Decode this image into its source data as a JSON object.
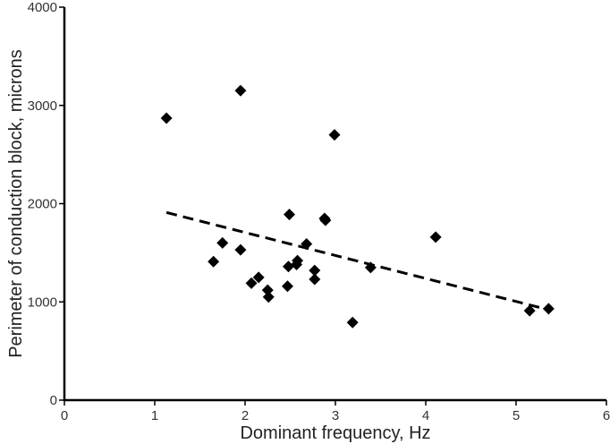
{
  "chart_data": {
    "type": "scatter",
    "xlabel": "Dominant frequency, Hz",
    "ylabel": "Perimeter of conduction block, microns",
    "xlim": [
      0,
      6
    ],
    "ylim": [
      0,
      4000
    ],
    "xticks": [
      "0",
      "1",
      "2",
      "3",
      "4",
      "5",
      "6"
    ],
    "yticks": [
      "0",
      "1000",
      "2000",
      "3000",
      "4000"
    ],
    "grid": false,
    "marker": "diamond",
    "marker_color": "#000000",
    "points": [
      {
        "x": 1.13,
        "y": 2870
      },
      {
        "x": 1.95,
        "y": 3150
      },
      {
        "x": 2.99,
        "y": 2700
      },
      {
        "x": 1.65,
        "y": 1410
      },
      {
        "x": 1.75,
        "y": 1600
      },
      {
        "x": 1.95,
        "y": 1530
      },
      {
        "x": 2.07,
        "y": 1190
      },
      {
        "x": 2.15,
        "y": 1250
      },
      {
        "x": 2.25,
        "y": 1120
      },
      {
        "x": 2.26,
        "y": 1050
      },
      {
        "x": 2.47,
        "y": 1160
      },
      {
        "x": 2.48,
        "y": 1360
      },
      {
        "x": 2.49,
        "y": 1890
      },
      {
        "x": 2.57,
        "y": 1380
      },
      {
        "x": 2.58,
        "y": 1420
      },
      {
        "x": 2.68,
        "y": 1590
      },
      {
        "x": 2.77,
        "y": 1320
      },
      {
        "x": 2.77,
        "y": 1230
      },
      {
        "x": 2.88,
        "y": 1850
      },
      {
        "x": 2.89,
        "y": 1830
      },
      {
        "x": 3.19,
        "y": 790
      },
      {
        "x": 3.39,
        "y": 1350
      },
      {
        "x": 4.11,
        "y": 1660
      },
      {
        "x": 5.15,
        "y": 910
      },
      {
        "x": 5.36,
        "y": 930
      }
    ],
    "trendline": {
      "style": "dashed",
      "x": [
        1.13,
        5.36
      ],
      "y": [
        1910,
        920
      ]
    }
  }
}
